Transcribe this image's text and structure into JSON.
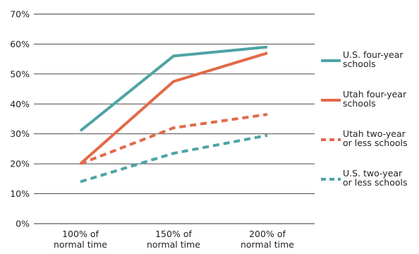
{
  "chart_data": {
    "type": "line",
    "title": "",
    "xlabel": "",
    "ylabel": "",
    "categories": [
      [
        "100% of",
        "normal time"
      ],
      [
        "150% of",
        "normal time"
      ],
      [
        "200% of",
        "normal time"
      ]
    ],
    "ylim": [
      0,
      70
    ],
    "yticks": [
      0,
      10,
      20,
      30,
      40,
      50,
      60,
      70
    ],
    "ytick_labels": [
      "0%",
      "10%",
      "20%",
      "30%",
      "40%",
      "50%",
      "60%",
      "70%"
    ],
    "grid": "horizontal",
    "legend_position": "right",
    "series": [
      {
        "name": [
          "U.S. four-year",
          "schools"
        ],
        "values": [
          31,
          56,
          59
        ],
        "color": "#4fa3a5",
        "dashed": false
      },
      {
        "name": [
          "Utah four-year",
          "schools"
        ],
        "values": [
          20,
          47.5,
          57
        ],
        "color": "#e26a4a",
        "dashed": false
      },
      {
        "name": [
          "Utah two-year",
          "or less schools"
        ],
        "values": [
          20,
          32,
          36.5
        ],
        "color": "#e26a4a",
        "dashed": true
      },
      {
        "name": [
          "U.S. two-year",
          "or less schools"
        ],
        "values": [
          14,
          23.5,
          29.5
        ],
        "color": "#4fa3a5",
        "dashed": true
      }
    ]
  }
}
